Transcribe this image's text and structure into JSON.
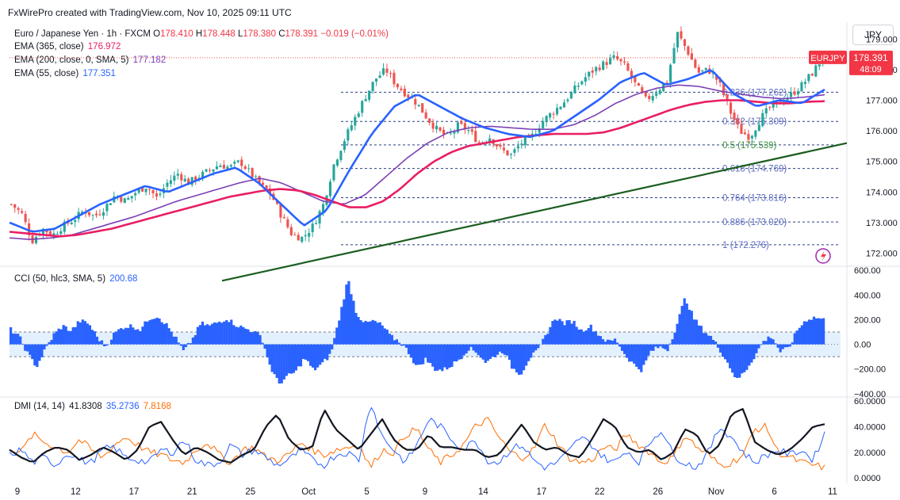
{
  "header": {
    "credit": "FxWirePro created with TradingView.com, Nov 10, 2025 09:11 UTC"
  },
  "currency_badge": "JPY",
  "legend": {
    "symbol_line": "Euro / Japanese Yen · 1h · FXCM",
    "ohlc": {
      "o_label": "O",
      "o": "178.410",
      "h_label": "H",
      "h": "178.448",
      "l_label": "L",
      "l": "178.380",
      "c_label": "C",
      "c": "178.391",
      "chg": "−0.019 (−0.01%)"
    },
    "ema365": {
      "label": "EMA (365, close)",
      "value": "176.972"
    },
    "ema200": {
      "label": "EMA (200, close, 0, SMA, 5)",
      "value": "177.182"
    },
    "ema55": {
      "label": "EMA (55, close)",
      "value": "177.351"
    },
    "cci": {
      "label": "CCI (50, hlc3, SMA, 5)",
      "value": "200.68"
    },
    "dmi": {
      "label": "DMI (14, 14)",
      "adx": "41.8308",
      "plus": "35.2736",
      "minus": "7.8168"
    }
  },
  "price_tag": {
    "symbol": "EURJPY",
    "price": "178.391",
    "countdown": "48:09"
  },
  "colors": {
    "ema365": "#e91e63",
    "ema200": "#7b3fb5",
    "ema55": "#2962ff",
    "up": "#26a69a",
    "down": "#ef5350",
    "trend": "#1b5e20",
    "adx": "#131722",
    "di_plus": "#2962ff",
    "di_minus": "#ff6d00",
    "cci": "#2962ff"
  },
  "chart_data": [
    {
      "type": "candlestick",
      "panel": "price",
      "ylim": [
        171.6,
        179.5
      ],
      "yticks": [
        "179.000",
        "178.000",
        "177.000",
        "176.000",
        "175.000",
        "174.000",
        "173.000",
        "172.000"
      ],
      "fib_levels": [
        {
          "label": "0.236 (177.262)",
          "value": 177.262
        },
        {
          "label": "0.382 (176.309)",
          "value": 176.309
        },
        {
          "label": "0.5 (175.539)",
          "value": 175.539
        },
        {
          "label": "0.618 (174.769)",
          "value": 174.769
        },
        {
          "label": "0.764 (173.816)",
          "value": 173.816
        },
        {
          "label": "0.886 (173.020)",
          "value": 173.02
        },
        {
          "label": "1 (172.276)",
          "value": 172.276
        }
      ],
      "trendline": {
        "from": {
          "x": "Oct 1",
          "y": 171.1
        },
        "to": {
          "x": "Nov 10",
          "y": 175.6
        }
      },
      "close_path": [
        173.6,
        173.3,
        172.4,
        172.8,
        172.6,
        172.9,
        173.1,
        173.4,
        173.2,
        173.5,
        173.9,
        173.7,
        174.0,
        174.2,
        173.8,
        174.3,
        174.6,
        174.3,
        174.5,
        174.7,
        174.9,
        174.8,
        175.0,
        174.6,
        174.2,
        173.9,
        173.2,
        172.6,
        172.5,
        172.9,
        173.6,
        174.9,
        175.7,
        176.4,
        177.1,
        177.7,
        178.0,
        177.5,
        177.2,
        176.9,
        176.4,
        176.0,
        175.8,
        176.2,
        176.0,
        175.6,
        175.8,
        175.4,
        175.2,
        175.6,
        175.8,
        176.3,
        176.6,
        176.9,
        177.3,
        177.7,
        178.0,
        178.2,
        178.4,
        178.1,
        177.5,
        177.0,
        177.3,
        177.6,
        179.2,
        178.6,
        177.9,
        178.0,
        177.6,
        176.7,
        176.0,
        175.8,
        176.4,
        176.8,
        177.0,
        177.2,
        177.5,
        177.9,
        178.39
      ],
      "ema365_path": [
        172.7,
        172.65,
        172.6,
        172.55,
        172.6,
        172.7,
        172.8,
        172.95,
        173.1,
        173.25,
        173.4,
        173.55,
        173.7,
        173.85,
        173.95,
        174.05,
        174.1,
        174.05,
        173.9,
        173.7,
        173.5,
        173.5,
        173.7,
        174.1,
        174.6,
        175.0,
        175.3,
        175.5,
        175.6,
        175.7,
        175.8,
        175.85,
        175.9,
        175.9,
        175.9,
        175.95,
        176.1,
        176.3,
        176.5,
        176.7,
        176.85,
        176.95,
        177.0,
        177.0,
        176.95,
        176.9,
        176.9,
        176.95,
        176.97
      ],
      "ema200_path": [
        172.5,
        172.45,
        172.5,
        172.6,
        172.8,
        173.0,
        173.2,
        173.45,
        173.7,
        173.9,
        174.1,
        174.3,
        174.45,
        174.3,
        174.0,
        173.7,
        173.6,
        173.9,
        174.5,
        175.1,
        175.6,
        175.95,
        176.1,
        176.15,
        176.1,
        176.05,
        176.05,
        176.2,
        176.5,
        176.9,
        177.2,
        177.4,
        177.5,
        177.45,
        177.3,
        177.2,
        177.1,
        177.05,
        177.1,
        177.18
      ],
      "ema55_path": [
        173.0,
        172.7,
        172.8,
        173.2,
        173.6,
        173.9,
        174.2,
        174.0,
        174.3,
        174.6,
        174.8,
        174.3,
        173.6,
        172.9,
        173.4,
        174.7,
        175.9,
        176.8,
        177.2,
        176.8,
        176.4,
        176.1,
        175.9,
        175.8,
        176.0,
        176.5,
        177.0,
        177.6,
        177.9,
        177.5,
        177.7,
        178.0,
        177.2,
        176.8,
        177.0,
        176.9,
        177.35
      ],
      "price_tag_value": 178.391
    },
    {
      "type": "histogram",
      "panel": "cci",
      "ylim": [
        -420,
        620
      ],
      "yticks": [
        "600.00",
        "400.00",
        "200.00",
        "0.00",
        "−200.00",
        "−400.00"
      ],
      "band": [
        -100,
        100
      ],
      "path": [
        120,
        60,
        -80,
        -180,
        -40,
        80,
        150,
        110,
        190,
        170,
        60,
        -20,
        90,
        140,
        150,
        120,
        210,
        230,
        160,
        60,
        -60,
        40,
        170,
        150,
        180,
        210,
        160,
        130,
        110,
        60,
        -180,
        -320,
        -260,
        -220,
        -110,
        -210,
        -160,
        -80,
        210,
        530,
        250,
        170,
        190,
        150,
        60,
        20,
        -60,
        -190,
        -120,
        -200,
        -210,
        -170,
        -110,
        -30,
        -70,
        -150,
        -90,
        -50,
        -190,
        -240,
        -110,
        -50,
        90,
        220,
        170,
        190,
        110,
        150,
        80,
        20,
        40,
        -80,
        -160,
        -210,
        -60,
        -20,
        -40,
        150,
        380,
        210,
        120,
        60,
        -40,
        -160,
        -290,
        -210,
        -100,
        20,
        70,
        -60,
        -30,
        120,
        200,
        220,
        200
      ]
    },
    {
      "type": "line",
      "panel": "dmi",
      "ylim": [
        -3,
        62
      ],
      "yticks": [
        "60.0000",
        "40.0000",
        "20.0000",
        "0.0000"
      ],
      "series": [
        {
          "name": "ADX",
          "values": [
            22,
            16,
            12,
            20,
            24,
            22,
            14,
            18,
            24,
            20,
            14,
            22,
            40,
            44,
            30,
            18,
            24,
            20,
            14,
            12,
            18,
            22,
            40,
            50,
            30,
            22,
            24,
            54,
            38,
            30,
            22,
            34,
            46,
            30,
            22,
            22,
            34,
            24,
            24,
            22,
            22,
            16,
            18,
            30,
            42,
            28,
            22,
            24,
            18,
            16,
            30,
            46,
            40,
            24,
            20,
            22,
            14,
            20,
            38,
            34,
            18,
            26,
            50,
            54,
            28,
            22,
            18,
            22,
            30,
            40,
            42
          ]
        },
        {
          "name": "DI+",
          "values": [
            18,
            22,
            12,
            16,
            10,
            20,
            14,
            12,
            22,
            24,
            16,
            14,
            12,
            22,
            20,
            30,
            14,
            10,
            12,
            26,
            18,
            22,
            16,
            10,
            14,
            22,
            14,
            10,
            18,
            20,
            14,
            60,
            32,
            22,
            12,
            26,
            46,
            40,
            30,
            22,
            30,
            14,
            12,
            22,
            26,
            14,
            8,
            12,
            20,
            32,
            26,
            16,
            12,
            22,
            12,
            28,
            38,
            18,
            12,
            8,
            20,
            40,
            32,
            20,
            12,
            18,
            22,
            18,
            22,
            14,
            35
          ]
        },
        {
          "name": "DI−",
          "values": [
            24,
            20,
            34,
            28,
            24,
            20,
            30,
            22,
            16,
            26,
            32,
            26,
            20,
            18,
            14,
            12,
            22,
            28,
            18,
            12,
            22,
            24,
            16,
            14,
            18,
            28,
            22,
            18,
            22,
            24,
            26,
            8,
            22,
            20,
            34,
            38,
            22,
            12,
            18,
            26,
            40,
            46,
            32,
            20,
            16,
            22,
            42,
            28,
            16,
            12,
            14,
            24,
            22,
            34,
            26,
            20,
            12,
            16,
            34,
            24,
            18,
            10,
            12,
            18,
            38,
            40,
            20,
            16,
            12,
            10,
            8
          ]
        }
      ]
    }
  ],
  "x_axis": {
    "labels": [
      "9",
      "12",
      "17",
      "21",
      "25",
      "Oct",
      "5",
      "9",
      "14",
      "17",
      "22",
      "26",
      "Nov",
      "6",
      "11"
    ]
  }
}
